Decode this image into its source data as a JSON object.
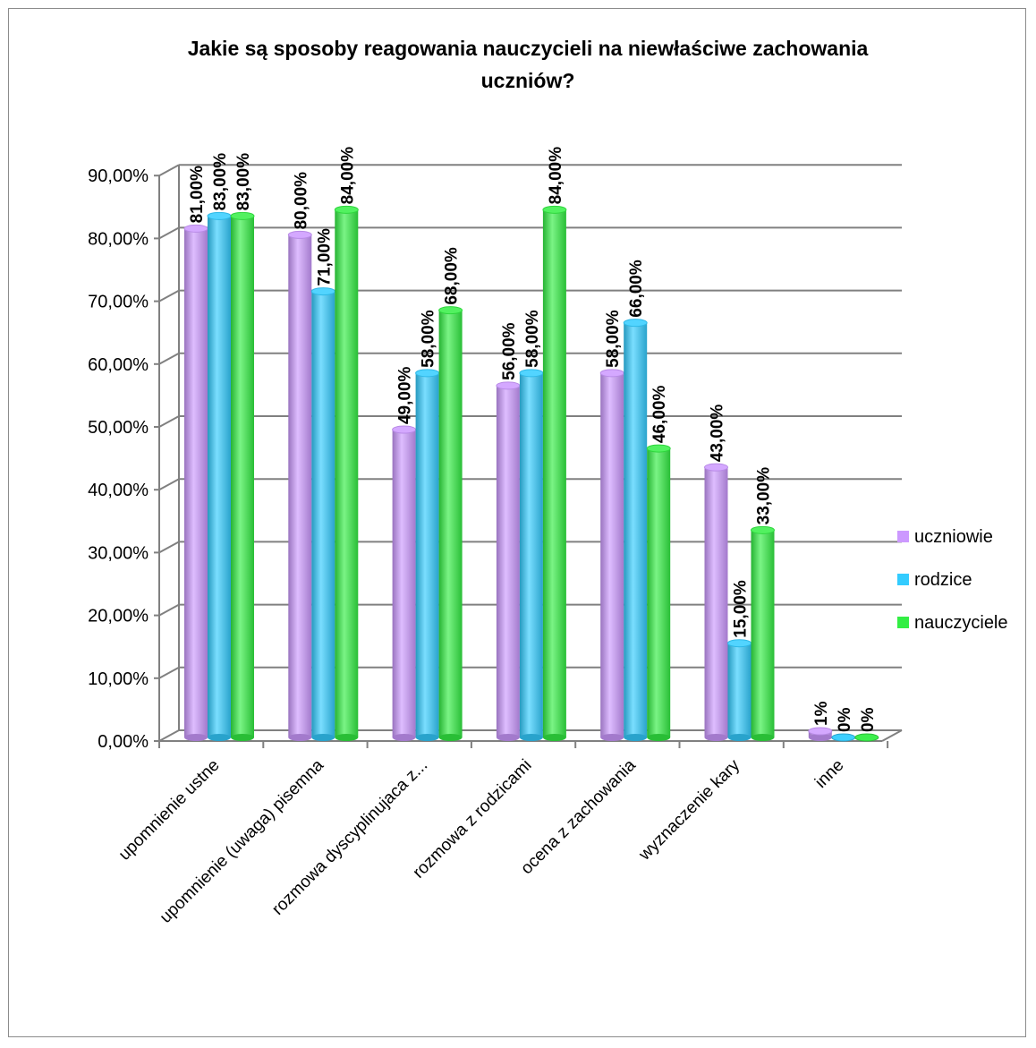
{
  "colors": {
    "uczniowie": "#cc99ff",
    "rodzice": "#33ccff",
    "nauczyciele": "#33ee44",
    "grid": "#808080",
    "axis": "#808080"
  },
  "chart_data": {
    "type": "bar",
    "title_lines": [
      "Jakie są sposoby reagowania nauczycieli na niewłaściwe zachowania",
      "uczniów?"
    ],
    "categories": [
      "upomnienie ustne",
      "upomnienie (uwaga) pisemna",
      "rozmowa dyscyplinujaca z...",
      "rozmowa z rodzicami",
      "ocena z zachowania",
      "wyznaczenie kary",
      "inne"
    ],
    "y_ticks": [
      "0,00%",
      "10,00%",
      "20,00%",
      "30,00%",
      "40,00%",
      "50,00%",
      "60,00%",
      "70,00%",
      "80,00%",
      "90,00%"
    ],
    "ylim": [
      0,
      0.9
    ],
    "grid": true,
    "legend_position": "right",
    "series": [
      {
        "name": "uczniowie",
        "values": [
          0.81,
          0.8,
          0.49,
          0.56,
          0.58,
          0.43,
          0.01
        ],
        "labels": [
          "81,00%",
          "80,00%",
          "49,00%",
          "56,00%",
          "58,00%",
          "43,00%",
          "1%"
        ]
      },
      {
        "name": "rodzice",
        "values": [
          0.83,
          0.71,
          0.58,
          0.58,
          0.66,
          0.15,
          0.0
        ],
        "labels": [
          "83,00%",
          "71,00%",
          "58,00%",
          "58,00%",
          "66,00%",
          "15,00%",
          "0%"
        ]
      },
      {
        "name": "nauczyciele",
        "values": [
          0.83,
          0.84,
          0.68,
          0.84,
          0.46,
          0.33,
          0.0
        ],
        "labels": [
          "83,00%",
          "84,00%",
          "68,00%",
          "84,00%",
          "46,00%",
          "33,00%",
          "0%"
        ]
      }
    ]
  }
}
